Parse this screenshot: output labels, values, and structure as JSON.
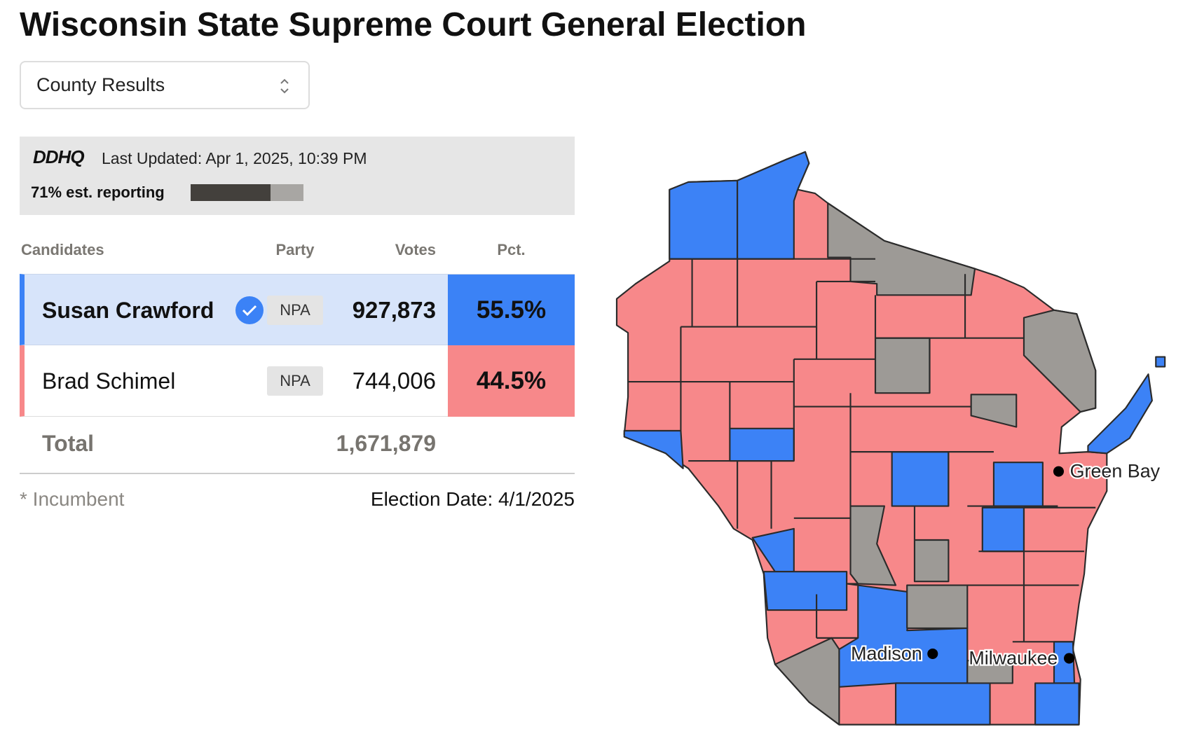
{
  "title": "Wisconsin State Supreme Court General Election",
  "dropdown": {
    "selected": "County Results"
  },
  "status": {
    "logo": "DDHQ",
    "last_updated": "Last Updated: Apr 1, 2025, 10:39 PM",
    "reporting": {
      "percent": 71,
      "label": "71% est. reporting"
    }
  },
  "table": {
    "headers": [
      "Candidates",
      "Party",
      "Votes",
      "Pct."
    ],
    "rows": [
      {
        "candidate": "Susan Crawford",
        "party": "NPA",
        "votes": "927,873",
        "pct": "55.5%"
      },
      {
        "candidate": "Brad Schimel",
        "party": "NPA",
        "votes": "744,006",
        "pct": "44.5%"
      }
    ],
    "total": {
      "label": "Total",
      "votes": "1,671,879"
    }
  },
  "footnote": "* Incumbent",
  "election_date": "Election Date: 4/1/2025",
  "map": {
    "cities": [
      "Green Bay",
      "Madison",
      "Milwaukee"
    ]
  }
}
